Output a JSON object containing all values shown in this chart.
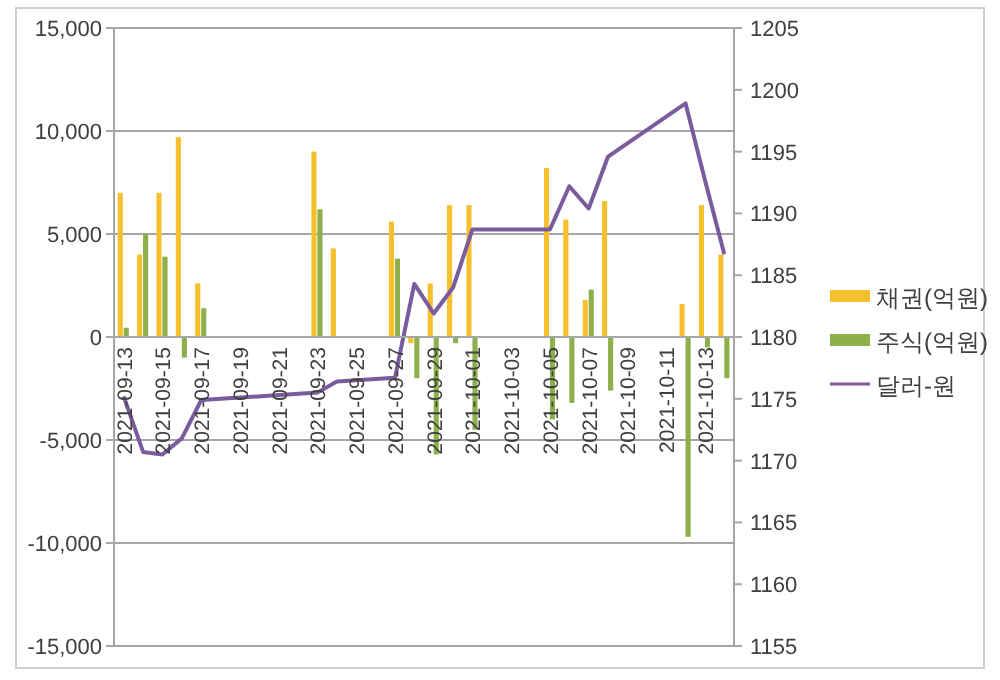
{
  "chart_data": {
    "type": "bar",
    "categories": [
      "2021-09-13",
      null,
      "2021-09-15",
      null,
      "2021-09-17",
      null,
      "2021-09-19",
      null,
      "2021-09-21",
      null,
      "2021-09-23",
      null,
      "2021-09-25",
      null,
      "2021-09-27",
      null,
      "2021-09-29",
      null,
      "2021-10-01",
      null,
      "2021-10-03",
      null,
      "2021-10-05",
      null,
      "2021-10-07",
      null,
      "2021-10-09",
      null,
      "2021-10-11",
      null,
      "2021-10-13",
      null
    ],
    "series": [
      {
        "name": "채권(억원)",
        "color": "#f5c02c",
        "values": [
          7000,
          4000,
          7000,
          9700,
          2600,
          null,
          null,
          null,
          null,
          null,
          9000,
          4300,
          null,
          null,
          5600,
          -300,
          2600,
          6400,
          6400,
          null,
          null,
          null,
          8200,
          5700,
          1800,
          6600,
          null,
          null,
          null,
          1600,
          6400,
          4000
        ]
      },
      {
        "name": "주식(억원)",
        "color": "#8db04a",
        "values": [
          450,
          5000,
          3900,
          -1000,
          1400,
          null,
          null,
          null,
          null,
          null,
          6200,
          null,
          null,
          null,
          3800,
          -2000,
          -5700,
          -300,
          -4500,
          null,
          null,
          null,
          -4000,
          -3200,
          2300,
          -2600,
          null,
          null,
          null,
          -9700,
          -500,
          -2000
        ]
      },
      {
        "name": "달러-원",
        "type": "line",
        "axis": "y2",
        "color": "#7a5c9e",
        "values": [
          1175.2,
          1170.7,
          1170.5,
          1171.8,
          1174.9,
          null,
          null,
          null,
          null,
          null,
          1175.5,
          1176.4,
          null,
          null,
          1176.7,
          1184.3,
          1181.9,
          1184.0,
          1188.7,
          null,
          null,
          null,
          1188.7,
          1192.2,
          1190.4,
          1194.6,
          null,
          null,
          null,
          1198.9,
          1192.7,
          1186.7
        ]
      }
    ],
    "ylim": [
      -15000,
      15000
    ],
    "yticks": [
      {
        "value": -15000,
        "label": "-15,000"
      },
      {
        "value": -10000,
        "label": "-10,000"
      },
      {
        "value": -5000,
        "label": "-5,000"
      },
      0,
      {
        "value": 5000,
        "label": "5,000"
      },
      {
        "value": 10000,
        "label": "10,000"
      },
      {
        "value": 15000,
        "label": "15,000"
      }
    ],
    "y2lim": [
      1155,
      1205
    ],
    "y2ticks": [
      1155,
      1160,
      1165,
      1170,
      1175,
      1180,
      1185,
      1190,
      1195,
      1200,
      1205
    ],
    "grid": "y",
    "legend": "right"
  }
}
